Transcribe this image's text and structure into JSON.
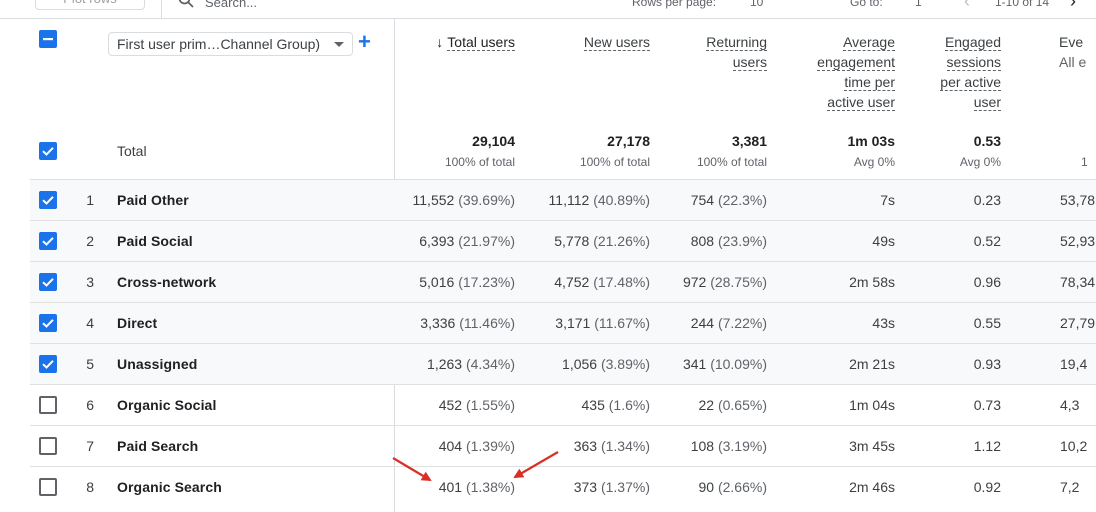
{
  "toolbar": {
    "plot_rows_label": "Plot rows",
    "search_placeholder": "Search...",
    "rows_per_page_label": "Rows per page:",
    "rows_per_page_value": "10",
    "goto_label": "Go to:",
    "goto_value": "1",
    "range_label": "1-10 of 14"
  },
  "dimension": {
    "label": "First user prim…Channel Group)"
  },
  "columns": [
    {
      "id": "total_users",
      "lines": [
        "Total users"
      ],
      "sorted": true
    },
    {
      "id": "new_users",
      "lines": [
        "New users"
      ]
    },
    {
      "id": "returning_users",
      "lines": [
        "Returning",
        "users"
      ]
    },
    {
      "id": "avg_engagement",
      "lines": [
        "Average",
        "engagement",
        "time per",
        "active user"
      ]
    },
    {
      "id": "engaged_sessions",
      "lines": [
        "Engaged",
        "sessions",
        "per active",
        "user"
      ]
    },
    {
      "id": "events",
      "lines": [
        "Eve",
        "All e"
      ]
    }
  ],
  "totals": {
    "label": "Total",
    "values": [
      "29,104",
      "27,178",
      "3,381",
      "1m 03s",
      "0.53",
      ""
    ],
    "subs": [
      "100% of total",
      "100% of total",
      "100% of total",
      "Avg 0%",
      "Avg 0%",
      "1"
    ]
  },
  "rows": [
    {
      "rank": "1",
      "name": "Paid Other",
      "checked": true,
      "total": "11,552",
      "total_pct": "(39.69%)",
      "new": "11,112",
      "new_pct": "(40.89%)",
      "ret": "754",
      "ret_pct": "(22.3%)",
      "avg": "7s",
      "eng": "0.23",
      "events": "53,78"
    },
    {
      "rank": "2",
      "name": "Paid Social",
      "checked": true,
      "total": "6,393",
      "total_pct": "(21.97%)",
      "new": "5,778",
      "new_pct": "(21.26%)",
      "ret": "808",
      "ret_pct": "(23.9%)",
      "avg": "49s",
      "eng": "0.52",
      "events": "52,93"
    },
    {
      "rank": "3",
      "name": "Cross-network",
      "checked": true,
      "total": "5,016",
      "total_pct": "(17.23%)",
      "new": "4,752",
      "new_pct": "(17.48%)",
      "ret": "972",
      "ret_pct": "(28.75%)",
      "avg": "2m 58s",
      "eng": "0.96",
      "events": "78,34"
    },
    {
      "rank": "4",
      "name": "Direct",
      "checked": true,
      "total": "3,336",
      "total_pct": "(11.46%)",
      "new": "3,171",
      "new_pct": "(11.67%)",
      "ret": "244",
      "ret_pct": "(7.22%)",
      "avg": "43s",
      "eng": "0.55",
      "events": "27,79"
    },
    {
      "rank": "5",
      "name": "Unassigned",
      "checked": true,
      "total": "1,263",
      "total_pct": "(4.34%)",
      "new": "1,056",
      "new_pct": "(3.89%)",
      "ret": "341",
      "ret_pct": "(10.09%)",
      "avg": "2m 21s",
      "eng": "0.93",
      "events": "19,4"
    },
    {
      "rank": "6",
      "name": "Organic Social",
      "checked": false,
      "total": "452",
      "total_pct": "(1.55%)",
      "new": "435",
      "new_pct": "(1.6%)",
      "ret": "22",
      "ret_pct": "(0.65%)",
      "avg": "1m 04s",
      "eng": "0.73",
      "events": "4,3"
    },
    {
      "rank": "7",
      "name": "Paid Search",
      "checked": false,
      "total": "404",
      "total_pct": "(1.39%)",
      "new": "363",
      "new_pct": "(1.34%)",
      "ret": "108",
      "ret_pct": "(3.19%)",
      "avg": "3m 45s",
      "eng": "1.12",
      "events": "10,2"
    },
    {
      "rank": "8",
      "name": "Organic Search",
      "checked": false,
      "total": "401",
      "total_pct": "(1.38%)",
      "new": "373",
      "new_pct": "(1.37%)",
      "ret": "90",
      "ret_pct": "(2.66%)",
      "avg": "2m 46s",
      "eng": "0.92",
      "events": "7,2"
    }
  ],
  "colors": {
    "accent": "#1a73e8",
    "annotation": "#d93025"
  }
}
